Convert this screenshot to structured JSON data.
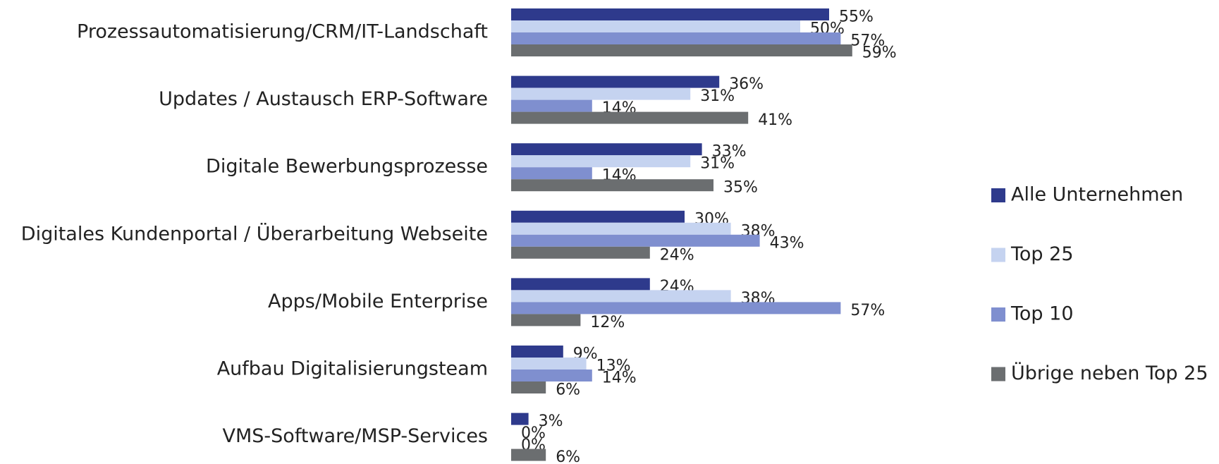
{
  "chart_data": {
    "type": "hbar",
    "categories": [
      "Prozessautomatisierung/CRM/IT-Landschaft",
      "Updates / Austausch ERP-Software",
      "Digitale Bewerbungsprozesse",
      "Digitales Kundenportal / Überarbeitung Webseite",
      "Apps/Mobile Enterprise",
      "Aufbau Digitalisierungsteam",
      "VMS-Software/MSP-Services"
    ],
    "series": [
      {
        "name": "Alle Unternehmen",
        "color": "#2e3a8c",
        "values": [
          55,
          36,
          33,
          30,
          24,
          9,
          3
        ],
        "value_labels": [
          "55%",
          "36%",
          "33%",
          "30%",
          "24%",
          "9%",
          "3%"
        ]
      },
      {
        "name": "Top 25",
        "color": "#c5d3f0",
        "values": [
          50,
          31,
          31,
          38,
          38,
          13,
          0
        ],
        "value_labels": [
          "50%",
          "31%",
          "31%",
          "38%",
          "38%",
          "13%",
          "0%"
        ]
      },
      {
        "name": "Top 10",
        "color": "#7f8fcf",
        "values": [
          57,
          14,
          14,
          43,
          57,
          14,
          0
        ],
        "value_labels": [
          "57%",
          "14%",
          "14%",
          "43%",
          "57%",
          "14%",
          "0%"
        ]
      },
      {
        "name": "Übrige neben Top 25",
        "color": "#6b6e70",
        "values": [
          59,
          41,
          35,
          24,
          12,
          6,
          6
        ],
        "value_labels": [
          "59%",
          "41%",
          "35%",
          "24%",
          "12%",
          "6%",
          "6%"
        ]
      }
    ],
    "xlim": [
      0,
      80
    ],
    "legend": "right"
  }
}
